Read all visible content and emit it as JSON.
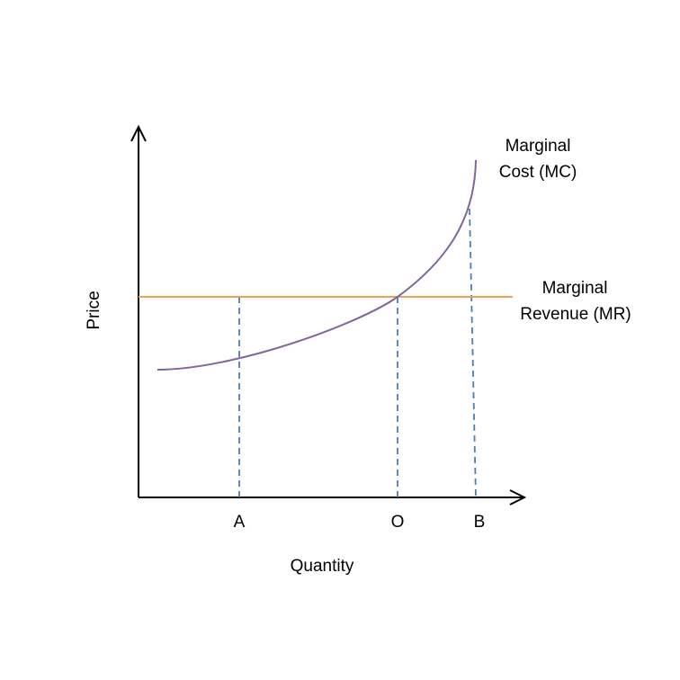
{
  "axes": {
    "y_label": "Price",
    "x_label": "Quantity"
  },
  "points": [
    "A",
    "O",
    "B"
  ],
  "curves": {
    "mc": {
      "label_lines": [
        "Marginal",
        "Cost (MC)"
      ]
    },
    "mr": {
      "label_lines": [
        "Marginal",
        "Revenue (MR)"
      ]
    }
  }
}
